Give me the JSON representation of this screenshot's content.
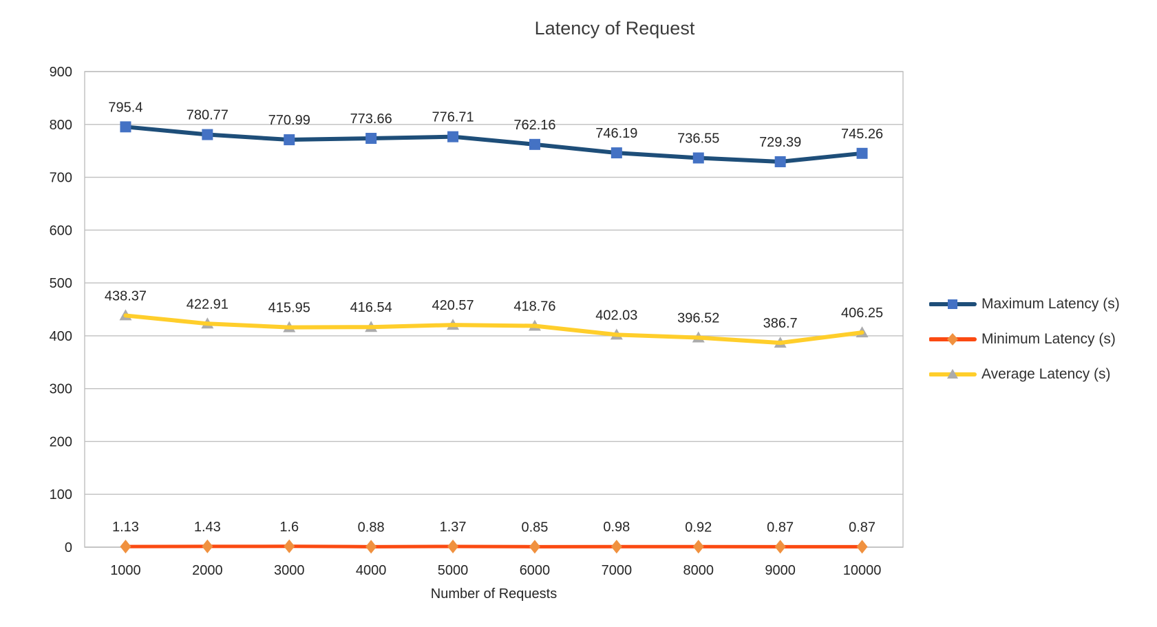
{
  "chart_data": {
    "type": "line",
    "title": "Latency of Request",
    "xlabel": "Number of Requests",
    "ylabel": "",
    "categories": [
      "1000",
      "2000",
      "3000",
      "4000",
      "5000",
      "6000",
      "7000",
      "8000",
      "9000",
      "10000"
    ],
    "ylim": [
      0,
      900
    ],
    "ytick_step": 100,
    "ytick_labels": [
      "0",
      "100",
      "200",
      "300",
      "400",
      "500",
      "600",
      "700",
      "800",
      "900"
    ],
    "grid": true,
    "legend_position": "right",
    "series": [
      {
        "name": "Maximum Latency (s)",
        "marker": "square",
        "line_color": "#1e4e79",
        "marker_color": "#4472c4",
        "values": [
          795.4,
          780.77,
          770.99,
          773.66,
          776.71,
          762.16,
          746.19,
          736.55,
          729.39,
          745.26
        ]
      },
      {
        "name": "Minimum Latency (s)",
        "marker": "diamond",
        "line_color": "#fb4a12",
        "marker_color": "#f0913f",
        "values": [
          1.13,
          1.43,
          1.6,
          0.88,
          1.37,
          0.85,
          0.98,
          0.92,
          0.87,
          0.87
        ]
      },
      {
        "name": "Average Latency (s)",
        "marker": "triangle",
        "line_color": "#ffce2b",
        "marker_color": "#ababab",
        "values": [
          438.37,
          422.91,
          415.95,
          416.54,
          420.57,
          418.76,
          402.03,
          396.52,
          386.7,
          406.25
        ]
      }
    ],
    "colors": {
      "gridline": "#bfbfbf",
      "axis_line": "#a9a9a9",
      "tick_text": "#262626",
      "data_label_text": "#262626",
      "title_text": "#3c3c3c"
    }
  }
}
